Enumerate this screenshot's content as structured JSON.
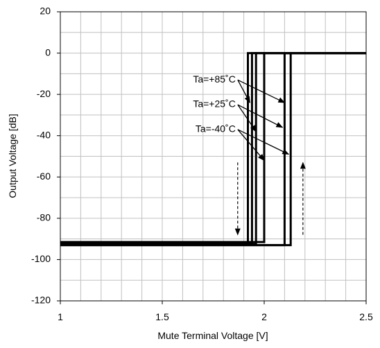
{
  "chart_data": {
    "type": "line",
    "title": "",
    "xlabel": "Mute Terminal Voltage [V]",
    "ylabel": "Output Voltage [dB]",
    "xlim": [
      1,
      2.5
    ],
    "ylim": [
      -120,
      20
    ],
    "x_major_ticks": [
      1,
      1.5,
      2,
      2.5
    ],
    "x_tick_labels": [
      "1",
      "1.5",
      "2",
      "2.5"
    ],
    "x_minor_step": 0.1,
    "y_ticks": [
      20,
      0,
      -20,
      -40,
      -60,
      -80,
      -100,
      -120
    ],
    "y_tick_labels": [
      "20",
      "0",
      "-20",
      "-40",
      "-60",
      "-80",
      "-100",
      "-120"
    ],
    "y_minor_step": 10,
    "grid": true,
    "line_color": "#000000",
    "grid_color": "#c0c0c0",
    "series": [
      {
        "values_on_rise": [
          [
            1,
            -92
          ],
          [
            1.92,
            -92
          ],
          [
            1.92,
            0
          ],
          [
            2.5,
            0
          ]
        ],
        "values_on_fall": [
          [
            1,
            -93
          ],
          [
            2.1,
            -93
          ],
          [
            2.1,
            0
          ],
          [
            2.5,
            0
          ]
        ]
      },
      {
        "values_on_rise": [
          [
            1,
            -92.5
          ],
          [
            1.96,
            -92.5
          ],
          [
            1.96,
            0
          ],
          [
            2.5,
            0
          ]
        ],
        "values_on_fall": [
          [
            1,
            -93
          ],
          [
            2.13,
            -93
          ],
          [
            2.13,
            0
          ],
          [
            2.5,
            0
          ]
        ]
      },
      {
        "values_on_rise": [
          [
            1,
            -91.5
          ],
          [
            2.0,
            -91.5
          ],
          [
            2.0,
            0
          ],
          [
            2.5,
            0
          ]
        ],
        "values_on_fall": [
          [
            1,
            -92
          ],
          [
            1.94,
            -92
          ],
          [
            1.94,
            0
          ],
          [
            2.5,
            0
          ]
        ]
      }
    ],
    "annotations": [
      {
        "text": "Ta=+85˚C",
        "at": [
          1.86,
          -13
        ],
        "arrows_to": [
          [
            1.93,
            -24
          ],
          [
            2.1,
            -24
          ]
        ]
      },
      {
        "text": "Ta=+25˚C",
        "at": [
          1.86,
          -25
        ],
        "arrows_to": [
          [
            1.96,
            -38
          ],
          [
            2.09,
            -36
          ]
        ]
      },
      {
        "text": "Ta=-40˚C",
        "at": [
          1.86,
          -37
        ],
        "arrows_to": [
          [
            2.0,
            -52
          ],
          [
            2.12,
            -49
          ]
        ]
      }
    ],
    "direction_arrows": [
      {
        "direction": "down",
        "x": 1.87,
        "from": -53,
        "to": -88
      },
      {
        "direction": "up",
        "x": 2.19,
        "from": -88,
        "to": -53
      }
    ]
  }
}
